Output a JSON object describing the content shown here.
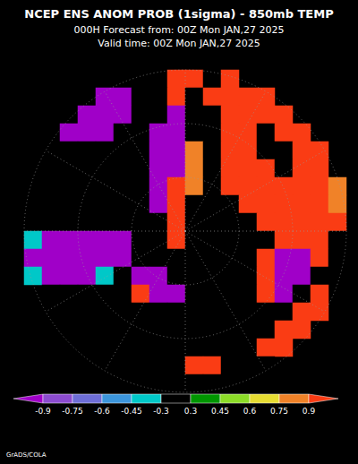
{
  "chart_data": {
    "type": "heatmap",
    "title": "NCEP ENS ANOM PROB (1sigma) - 850mb TEMP",
    "subtitle": [
      "000H Forecast from: 00Z Mon JAN,27 2025",
      "Valid time: 00Z Mon JAN,27 2025"
    ],
    "annotation": "GrADS/COLA",
    "colorbar_range": [
      -0.9,
      0.9
    ],
    "colorbar_ticks": [
      -0.9,
      -0.75,
      -0.6,
      -0.45,
      -0.3,
      0.3,
      0.45,
      0.6,
      0.75,
      0.9
    ],
    "colors": [
      "#a000c8",
      "#8c4ccf",
      "#6e6ed6",
      "#3c96dc",
      "#00c8c8",
      "#000000",
      "#009600",
      "#8cdc28",
      "#e6dc32",
      "#f08228",
      "#fa3c14"
    ],
    "cells": [
      [
        null,
        null,
        null,
        null,
        null,
        null,
        0,
        0,
        0.95,
        0.95,
        0,
        0.95,
        null,
        null,
        null,
        null,
        null,
        null
      ],
      [
        null,
        null,
        null,
        null,
        -0.95,
        -0.95,
        0,
        0,
        0.95,
        0,
        0.95,
        0.95,
        0.95,
        0.95,
        null,
        null,
        null,
        null
      ],
      [
        null,
        null,
        null,
        -0.95,
        -0.95,
        -0.95,
        0,
        0,
        -0.95,
        0,
        0,
        0.95,
        0.95,
        0.95,
        0.95,
        null,
        null,
        null
      ],
      [
        null,
        null,
        -0.95,
        -0.95,
        -0.95,
        0,
        0,
        -0.95,
        -0.95,
        0,
        0,
        0.95,
        0.95,
        0,
        0.95,
        0.95,
        null,
        null
      ],
      [
        null,
        0,
        0,
        0,
        0,
        0,
        0,
        -0.95,
        -0.95,
        0.8,
        0,
        0.95,
        0.95,
        0,
        0,
        0.95,
        0.95,
        null
      ],
      [
        null,
        0,
        0,
        0,
        0,
        0,
        0,
        -0.95,
        -0.95,
        0.8,
        0,
        0.95,
        0.95,
        0.95,
        0,
        0.95,
        0.95,
        null
      ],
      [
        0,
        0,
        0,
        0,
        0,
        0,
        0,
        -0.95,
        0.95,
        0.8,
        0,
        0.95,
        0.95,
        0.95,
        0.95,
        0.95,
        0.95,
        0.8
      ],
      [
        0,
        0,
        0,
        0,
        0,
        0,
        0,
        -0.95,
        0.95,
        0,
        0,
        0,
        0.95,
        0.95,
        0.95,
        0.95,
        0.95,
        0.8
      ],
      [
        0,
        0,
        0,
        0,
        0,
        0,
        0,
        0,
        0.95,
        0,
        0,
        0,
        0,
        0.95,
        0.95,
        0.95,
        0.95,
        0.95
      ],
      [
        -0.4,
        -0.95,
        -0.95,
        -0.95,
        -0.95,
        -0.95,
        0,
        0,
        0.95,
        0,
        0,
        0,
        0,
        0,
        0.95,
        0.95,
        0.95,
        0
      ],
      [
        -0.95,
        -0.95,
        -0.95,
        -0.95,
        -0.95,
        -0.95,
        0,
        0,
        0,
        0,
        0,
        0,
        0,
        0.95,
        -0.95,
        -0.95,
        0.95,
        0
      ],
      [
        -0.4,
        -0.95,
        -0.95,
        -0.95,
        -0.4,
        0,
        -0.95,
        -0.95,
        0,
        0,
        0,
        0,
        0,
        0.95,
        -0.95,
        -0.95,
        0,
        0
      ],
      [
        null,
        0,
        0,
        0,
        0,
        0,
        0.95,
        -0.95,
        -0.95,
        0,
        0,
        0,
        0,
        0.95,
        -0.95,
        0,
        0.95,
        null
      ],
      [
        null,
        0,
        0,
        0,
        0,
        0,
        0,
        0,
        0,
        0,
        0,
        0,
        0,
        0,
        0,
        0.95,
        0.95,
        null
      ],
      [
        null,
        null,
        0,
        0,
        0,
        0,
        0,
        0,
        0,
        0,
        0,
        0,
        0,
        0,
        0.95,
        0.95,
        null,
        null
      ],
      [
        null,
        null,
        null,
        0,
        0,
        0,
        0,
        0,
        0,
        0,
        0,
        0,
        0,
        0.95,
        0.95,
        null,
        null,
        null
      ],
      [
        null,
        null,
        null,
        null,
        0,
        0,
        0,
        0,
        0,
        0.95,
        0.95,
        0,
        0,
        0,
        null,
        null,
        null,
        null
      ],
      [
        null,
        null,
        null,
        null,
        null,
        null,
        0,
        0,
        0,
        0,
        0,
        0,
        null,
        null,
        null,
        null,
        null,
        null
      ]
    ]
  }
}
